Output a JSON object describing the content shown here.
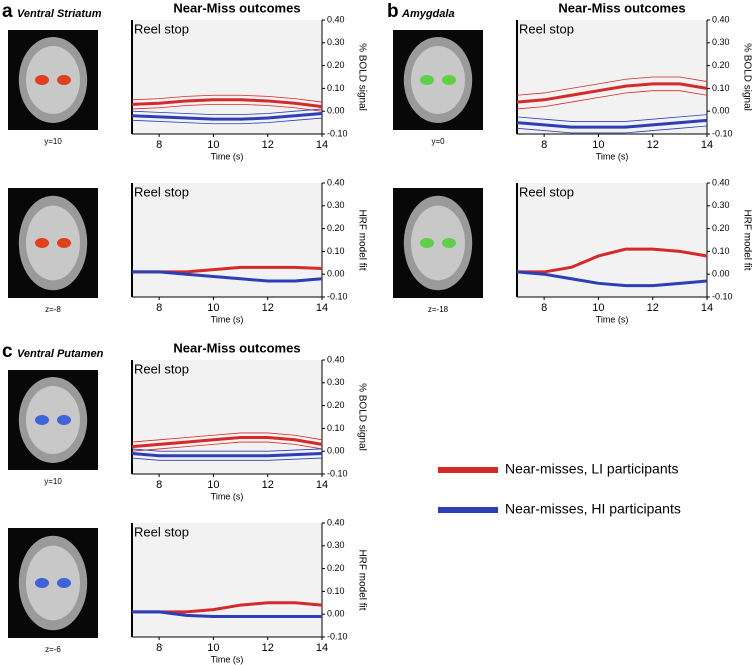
{
  "panels": [
    {
      "letter": "a",
      "region": "Ventral Striatum",
      "slices": [
        "y=10",
        "z=-8"
      ],
      "roi_color": "#e0401c"
    },
    {
      "letter": "b",
      "region": "Amygdala",
      "slices": [
        "y=0",
        "z=-18"
      ],
      "roi_color": "#5fcf4a"
    },
    {
      "letter": "c",
      "region": "Ventral Putamen",
      "slices": [
        "y=10",
        "z=-6"
      ],
      "roi_color": "#3f63d8"
    }
  ],
  "legend": [
    {
      "label": "Near-misses, LI participants",
      "color": "#d42a2a"
    },
    {
      "label": "Near-misses, HI participants",
      "color": "#2d3fb4"
    }
  ],
  "chart_data": [
    {
      "type": "line",
      "title": "Near-Miss outcomes",
      "annotation": "Reel stop",
      "x_label": "Time (s)",
      "y_label": "% BOLD signal",
      "x": [
        7,
        8,
        9,
        10,
        11,
        12,
        13,
        14
      ],
      "xlim": [
        7,
        14
      ],
      "xticks": [
        8,
        10,
        12,
        14
      ],
      "ylim": [
        -0.1,
        0.4
      ],
      "yticks": [
        {
          "value": -0.1,
          "label": "-0.10"
        },
        {
          "value": 0,
          "label": "0.00"
        },
        {
          "value": 0.1,
          "label": "0.10"
        },
        {
          "value": 0.2,
          "label": "0.20"
        },
        {
          "value": 0.3,
          "label": "0.30"
        },
        {
          "value": 0.4,
          "label": "0.40"
        }
      ],
      "series": [
        {
          "color": "#d42a2a",
          "values": [
            0.03,
            0.035,
            0.045,
            0.05,
            0.05,
            0.045,
            0.035,
            0.02
          ],
          "ci_upper": [
            0.05,
            0.055,
            0.065,
            0.07,
            0.07,
            0.065,
            0.055,
            0.04
          ],
          "ci_lower": [
            0.01,
            0.015,
            0.025,
            0.03,
            0.03,
            0.025,
            0.015,
            0.0
          ]
        },
        {
          "color": "#2d3fb4",
          "values": [
            -0.02,
            -0.025,
            -0.03,
            -0.035,
            -0.035,
            -0.03,
            -0.02,
            -0.01
          ],
          "ci_upper": [
            0.0,
            -0.005,
            -0.01,
            -0.015,
            -0.015,
            -0.01,
            0.0,
            0.01
          ],
          "ci_lower": [
            -0.04,
            -0.045,
            -0.05,
            -0.055,
            -0.055,
            -0.05,
            -0.04,
            -0.03
          ]
        }
      ]
    },
    {
      "type": "line",
      "annotation": "Reel stop",
      "x_label": "Time (s)",
      "y_label": "HRF model fit",
      "x": [
        7,
        8,
        9,
        10,
        11,
        12,
        13,
        14
      ],
      "xlim": [
        7,
        14
      ],
      "xticks": [
        8,
        10,
        12,
        14
      ],
      "ylim": [
        -0.1,
        0.4
      ],
      "yticks": [
        {
          "value": -0.1,
          "label": "-0.10"
        },
        {
          "value": 0,
          "label": "0.00"
        },
        {
          "value": 0.1,
          "label": "0.10"
        },
        {
          "value": 0.2,
          "label": "0.20"
        },
        {
          "value": 0.3,
          "label": "0.30"
        },
        {
          "value": 0.4,
          "label": "0.40"
        }
      ],
      "series": [
        {
          "color": "#d42a2a",
          "values": [
            0.01,
            0.01,
            0.01,
            0.02,
            0.03,
            0.03,
            0.03,
            0.025
          ]
        },
        {
          "color": "#2d3fb4",
          "values": [
            0.01,
            0.01,
            0.0,
            -0.01,
            -0.02,
            -0.03,
            -0.03,
            -0.02
          ]
        }
      ]
    },
    {
      "type": "line",
      "title": "Near-Miss outcomes",
      "annotation": "Reel stop",
      "x_label": "Time (s)",
      "y_label": "% BOLD signal",
      "x": [
        7,
        8,
        9,
        10,
        11,
        12,
        13,
        14
      ],
      "xlim": [
        7,
        14
      ],
      "xticks": [
        8,
        10,
        12,
        14
      ],
      "ylim": [
        -0.1,
        0.4
      ],
      "yticks": [
        {
          "value": -0.1,
          "label": "-0.10"
        },
        {
          "value": 0,
          "label": "0.00"
        },
        {
          "value": 0.1,
          "label": "0.10"
        },
        {
          "value": 0.2,
          "label": "0.20"
        },
        {
          "value": 0.3,
          "label": "0.30"
        },
        {
          "value": 0.4,
          "label": "0.40"
        }
      ],
      "series": [
        {
          "color": "#d42a2a",
          "values": [
            0.04,
            0.05,
            0.07,
            0.09,
            0.11,
            0.12,
            0.12,
            0.1
          ],
          "ci_upper": [
            0.07,
            0.08,
            0.1,
            0.12,
            0.14,
            0.15,
            0.15,
            0.13
          ],
          "ci_lower": [
            0.01,
            0.02,
            0.04,
            0.06,
            0.08,
            0.09,
            0.09,
            0.07
          ]
        },
        {
          "color": "#2d3fb4",
          "values": [
            -0.05,
            -0.06,
            -0.07,
            -0.07,
            -0.07,
            -0.06,
            -0.05,
            -0.04
          ],
          "ci_upper": [
            -0.025,
            -0.035,
            -0.045,
            -0.045,
            -0.045,
            -0.035,
            -0.025,
            -0.015
          ],
          "ci_lower": [
            -0.075,
            -0.085,
            -0.095,
            -0.095,
            -0.095,
            -0.085,
            -0.075,
            -0.065
          ]
        }
      ]
    },
    {
      "type": "line",
      "annotation": "Reel stop",
      "x_label": "Time (s)",
      "y_label": "HRF model fit",
      "x": [
        7,
        8,
        9,
        10,
        11,
        12,
        13,
        14
      ],
      "xlim": [
        7,
        14
      ],
      "xticks": [
        8,
        10,
        12,
        14
      ],
      "ylim": [
        -0.1,
        0.4
      ],
      "yticks": [
        {
          "value": -0.1,
          "label": "-0.10"
        },
        {
          "value": 0,
          "label": "0.00"
        },
        {
          "value": 0.1,
          "label": "0.10"
        },
        {
          "value": 0.2,
          "label": "0.20"
        },
        {
          "value": 0.3,
          "label": "0.30"
        },
        {
          "value": 0.4,
          "label": "0.40"
        }
      ],
      "series": [
        {
          "color": "#d42a2a",
          "values": [
            0.01,
            0.01,
            0.03,
            0.08,
            0.11,
            0.11,
            0.1,
            0.08
          ]
        },
        {
          "color": "#2d3fb4",
          "values": [
            0.01,
            0.0,
            -0.02,
            -0.04,
            -0.05,
            -0.05,
            -0.04,
            -0.03
          ]
        }
      ]
    },
    {
      "type": "line",
      "title": "Near-Miss outcomes",
      "annotation": "Reel stop",
      "x_label": "Time (s)",
      "y_label": "% BOLD signal",
      "x": [
        7,
        8,
        9,
        10,
        11,
        12,
        13,
        14
      ],
      "xlim": [
        7,
        14
      ],
      "xticks": [
        8,
        10,
        12,
        14
      ],
      "ylim": [
        -0.1,
        0.4
      ],
      "yticks": [
        {
          "value": -0.1,
          "label": "-0.10"
        },
        {
          "value": 0,
          "label": "0.00"
        },
        {
          "value": 0.1,
          "label": "0.10"
        },
        {
          "value": 0.2,
          "label": "0.20"
        },
        {
          "value": 0.3,
          "label": "0.30"
        },
        {
          "value": 0.4,
          "label": "0.40"
        }
      ],
      "series": [
        {
          "color": "#d42a2a",
          "values": [
            0.02,
            0.03,
            0.04,
            0.05,
            0.06,
            0.06,
            0.05,
            0.03
          ],
          "ci_upper": [
            0.04,
            0.05,
            0.06,
            0.07,
            0.08,
            0.08,
            0.07,
            0.05
          ],
          "ci_lower": [
            0.0,
            0.01,
            0.02,
            0.03,
            0.04,
            0.04,
            0.03,
            0.01
          ]
        },
        {
          "color": "#2d3fb4",
          "values": [
            -0.01,
            -0.02,
            -0.02,
            -0.02,
            -0.02,
            -0.02,
            -0.015,
            -0.01
          ],
          "ci_upper": [
            0.01,
            0.0,
            0.0,
            0.0,
            0.0,
            0.0,
            0.005,
            0.01
          ],
          "ci_lower": [
            -0.03,
            -0.04,
            -0.04,
            -0.04,
            -0.04,
            -0.04,
            -0.035,
            -0.03
          ]
        }
      ]
    },
    {
      "type": "line",
      "annotation": "Reel stop",
      "x_label": "Time (s)",
      "y_label": "HRF model fit",
      "x": [
        7,
        8,
        9,
        10,
        11,
        12,
        13,
        14
      ],
      "xlim": [
        7,
        14
      ],
      "xticks": [
        8,
        10,
        12,
        14
      ],
      "ylim": [
        -0.1,
        0.4
      ],
      "yticks": [
        {
          "value": -0.1,
          "label": "-0.10"
        },
        {
          "value": 0,
          "label": "0.00"
        },
        {
          "value": 0.1,
          "label": "0.10"
        },
        {
          "value": 0.2,
          "label": "0.20"
        },
        {
          "value": 0.3,
          "label": "0.30"
        },
        {
          "value": 0.4,
          "label": "0.40"
        }
      ],
      "series": [
        {
          "color": "#d42a2a",
          "values": [
            0.01,
            0.01,
            0.01,
            0.02,
            0.04,
            0.05,
            0.05,
            0.04
          ]
        },
        {
          "color": "#2d3fb4",
          "values": [
            0.01,
            0.01,
            -0.005,
            -0.01,
            -0.01,
            -0.01,
            -0.01,
            -0.01
          ]
        }
      ]
    }
  ]
}
